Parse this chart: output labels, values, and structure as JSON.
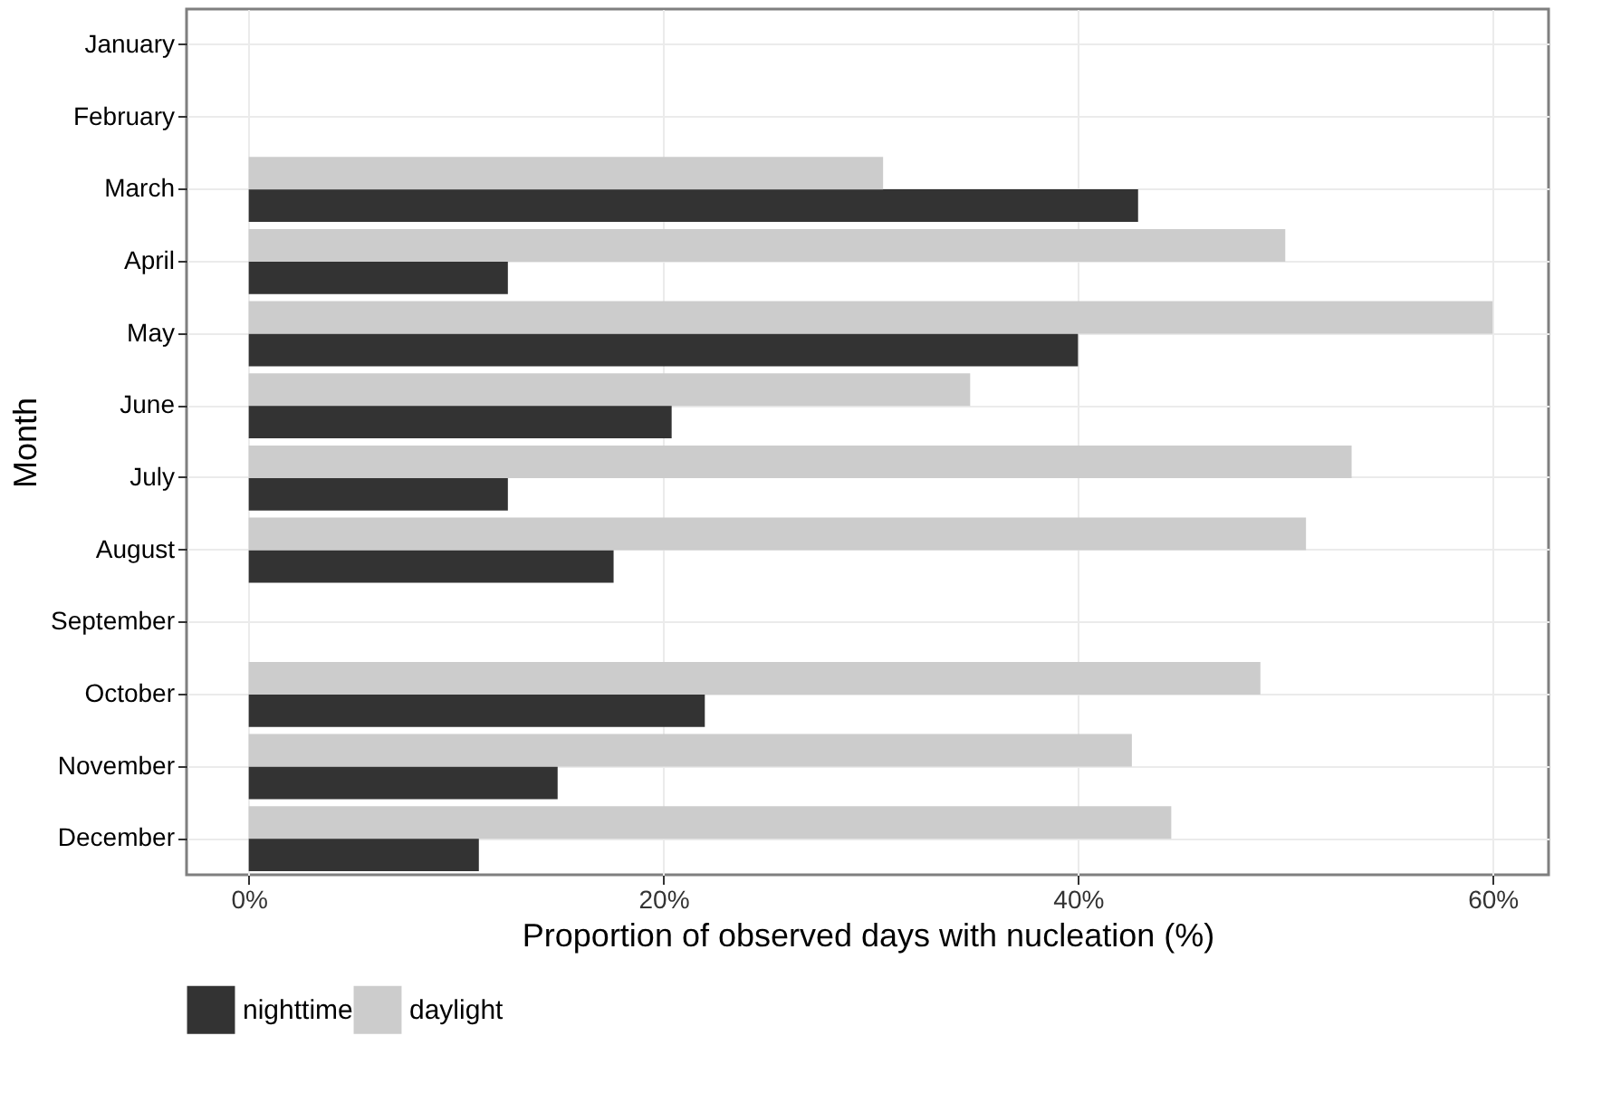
{
  "chart_data": {
    "type": "bar",
    "orientation": "horizontal",
    "xlabel": "Proportion of observed days with nucleation (%)",
    "ylabel": "Month",
    "categories": [
      "January",
      "February",
      "March",
      "April",
      "May",
      "June",
      "July",
      "August",
      "September",
      "October",
      "November",
      "December"
    ],
    "series": [
      {
        "name": "nighttime",
        "color": "#333333",
        "values": [
          null,
          null,
          42.9,
          12.5,
          40.0,
          20.4,
          12.5,
          17.6,
          0,
          22.0,
          14.9,
          11.1
        ]
      },
      {
        "name": "daylight",
        "color": "#cccccc",
        "values": [
          null,
          null,
          30.6,
          50.0,
          60.0,
          34.8,
          53.2,
          51.0,
          0,
          48.8,
          42.6,
          44.5
        ]
      }
    ],
    "xlim": [
      -3,
      62.7
    ],
    "xticks": [
      {
        "value": 0,
        "label": "0%"
      },
      {
        "value": 20,
        "label": "20%"
      },
      {
        "value": 40,
        "label": "40%"
      },
      {
        "value": 60,
        "label": "60%"
      }
    ],
    "grid": true,
    "legend": "bottom"
  }
}
